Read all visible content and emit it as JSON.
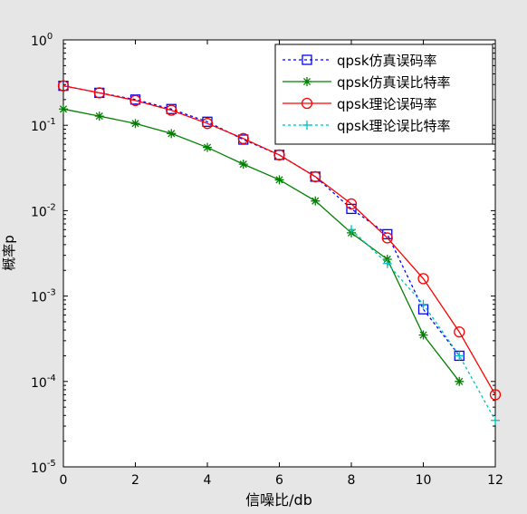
{
  "chart_data": {
    "type": "line",
    "yscale": "log",
    "xlabel": "信噪比/db",
    "ylabel": "概率p",
    "xlim": [
      0,
      12
    ],
    "ylim": [
      1e-05,
      1
    ],
    "grid": false,
    "legend_position": "top-right",
    "xticks": [
      "0",
      "2",
      "4",
      "6",
      "8",
      "10",
      "12"
    ],
    "yticks": [
      {
        "value": 1e-05,
        "base": "10",
        "exp": "-5"
      },
      {
        "value": 0.0001,
        "base": "10",
        "exp": "-4"
      },
      {
        "value": 0.001,
        "base": "10",
        "exp": "-3"
      },
      {
        "value": 0.01,
        "base": "10",
        "exp": "-2"
      },
      {
        "value": 0.1,
        "base": "10",
        "exp": "-1"
      },
      {
        "value": 1,
        "base": "10",
        "exp": "0"
      }
    ],
    "series": [
      {
        "name": "qpsk仿真误码率",
        "color": "#0000ff",
        "line": "dotted",
        "marker": "square",
        "x": [
          0,
          1,
          2,
          3,
          4,
          5,
          6,
          7,
          8,
          9,
          10,
          11
        ],
        "y": [
          0.29,
          0.24,
          0.2,
          0.155,
          0.11,
          0.068,
          0.045,
          0.025,
          0.0105,
          0.0053,
          0.0007,
          0.0002
        ]
      },
      {
        "name": "qpsk仿真误比特率",
        "color": "#008000",
        "line": "solid",
        "marker": "star",
        "x": [
          0,
          1,
          2,
          3,
          4,
          5,
          6,
          7,
          8,
          9,
          10,
          11
        ],
        "y": [
          0.155,
          0.128,
          0.105,
          0.08,
          0.055,
          0.035,
          0.023,
          0.013,
          0.0055,
          0.0027,
          0.00035,
          0.0001
        ]
      },
      {
        "name": "qpsk理论误码率",
        "color": "#ff0000",
        "line": "solid",
        "marker": "circle",
        "x": [
          0,
          1,
          2,
          3,
          4,
          5,
          6,
          7,
          8,
          9,
          10,
          11,
          12
        ],
        "y": [
          0.29,
          0.24,
          0.195,
          0.15,
          0.105,
          0.07,
          0.045,
          0.025,
          0.012,
          0.0048,
          0.0016,
          0.00038,
          7e-05
        ]
      },
      {
        "name": "qpsk理论误比特率",
        "color": "#00bfbf",
        "line": "dotted",
        "marker": "plus",
        "x": [
          8,
          9,
          10,
          11,
          12
        ],
        "y": [
          0.006,
          0.0024,
          0.0008,
          0.0002,
          3.5e-05
        ]
      }
    ]
  }
}
